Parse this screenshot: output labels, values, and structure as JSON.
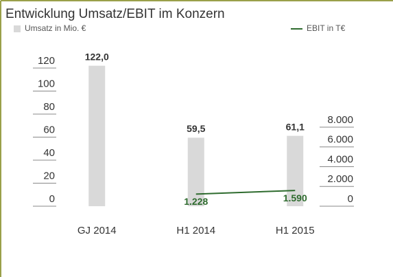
{
  "chart_data": {
    "type": "bar_line",
    "title": "Entwicklung Umsatz/EBIT im Konzern",
    "categories": [
      "GJ 2014",
      "H1 2014",
      "H1 2015"
    ],
    "series": [
      {
        "name": "Umsatz in Mio. €",
        "color": "#d9d9d9",
        "type": "bar",
        "values": [
          122.0,
          59.5,
          61.1
        ],
        "value_labels": [
          "122,0",
          "59,5",
          "61,1"
        ]
      },
      {
        "name": "EBIT in T€",
        "color": "#2e6b2e",
        "type": "line",
        "axis": "y2",
        "values": [
          null,
          1228,
          1590
        ],
        "value_labels": [
          null,
          "1.228",
          "1.590"
        ]
      }
    ],
    "ylim": [
      0,
      120
    ],
    "yticks": [
      0,
      20,
      40,
      60,
      80,
      100,
      120
    ],
    "y2lim": [
      0,
      8000
    ],
    "y2ticks": [
      0,
      {
        "value": 2000,
        "label": "2.000"
      },
      {
        "value": 4000,
        "label": "4.000"
      },
      {
        "value": 6000,
        "label": "6.000"
      },
      {
        "value": 8000,
        "label": "8.000"
      }
    ]
  }
}
